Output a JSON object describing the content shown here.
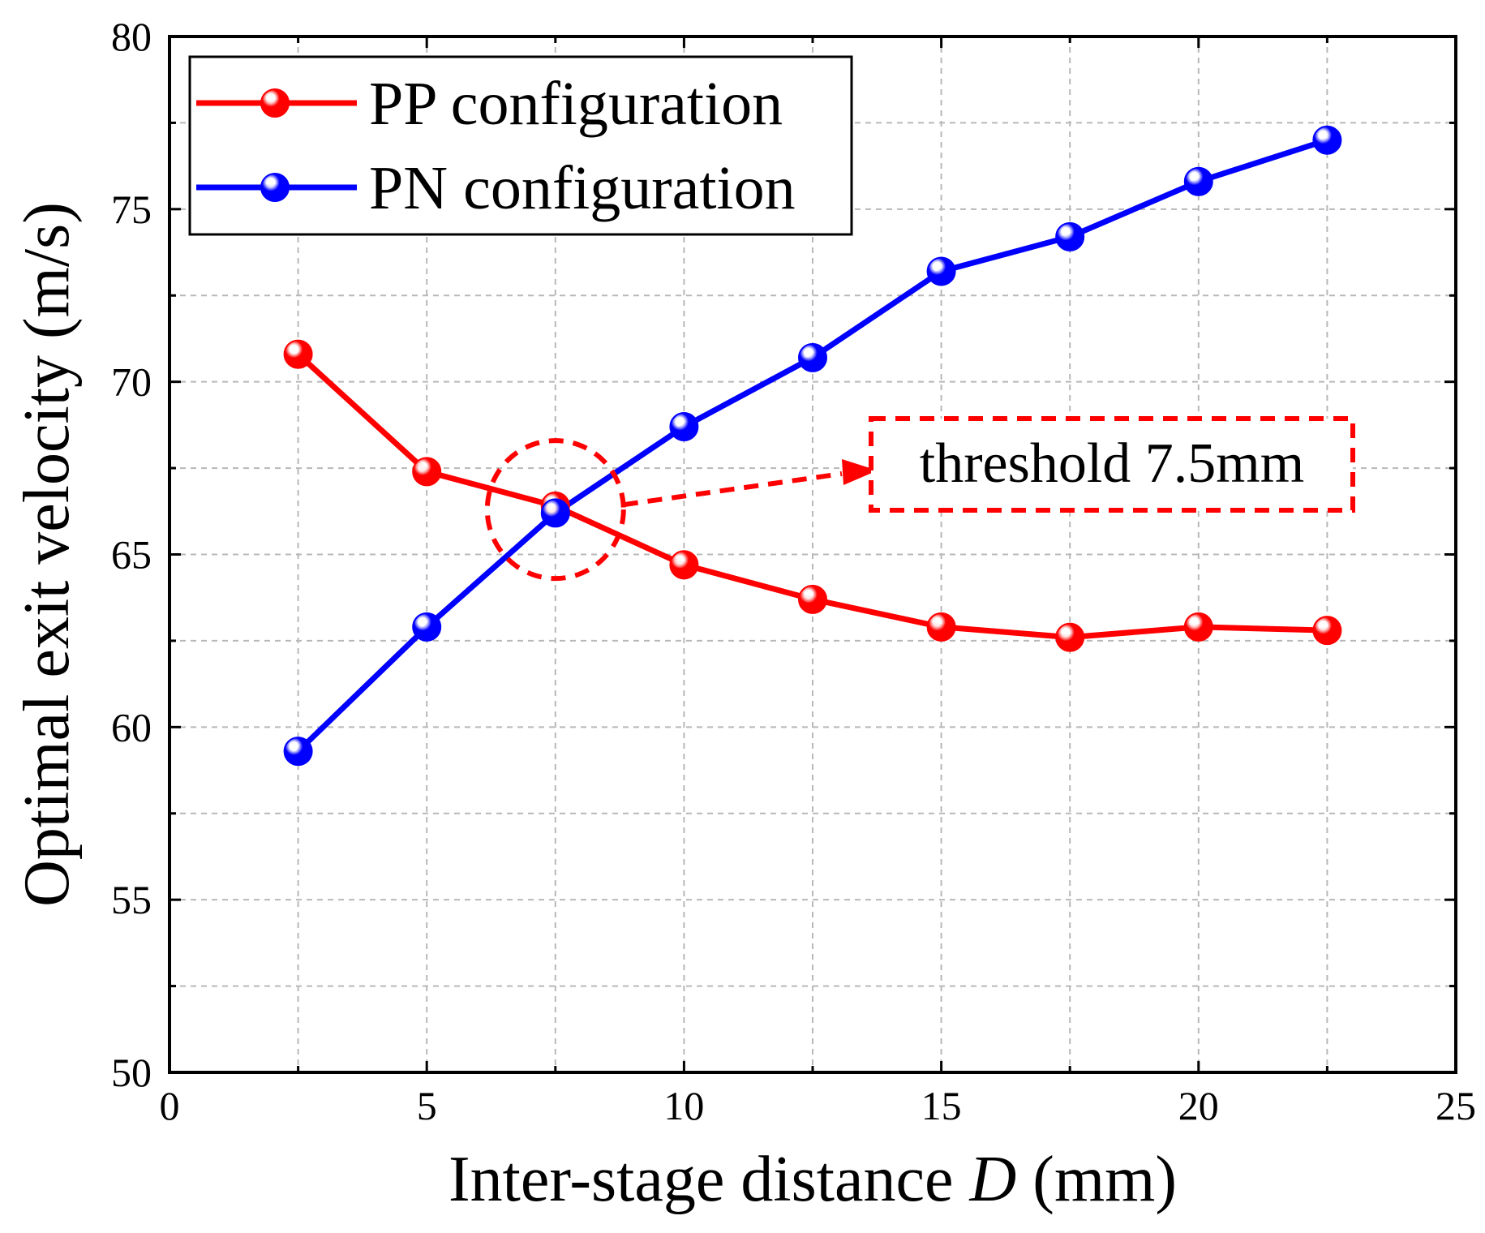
{
  "chart_data": {
    "type": "line",
    "title": "",
    "xlabel_prefix": "Inter-stage distance ",
    "xlabel_var": "D",
    "xlabel_suffix": " (mm)",
    "ylabel": "Optimal exit velocity (m/s)",
    "xlim": [
      0,
      25
    ],
    "ylim": [
      50,
      80
    ],
    "xticks": [
      0,
      5,
      10,
      15,
      20,
      25
    ],
    "yticks": [
      50,
      55,
      60,
      65,
      70,
      75,
      80
    ],
    "grid": true,
    "legend_position": "top-left",
    "x": [
      2.5,
      5,
      7.5,
      10,
      12.5,
      15,
      17.5,
      20,
      22.5
    ],
    "series": [
      {
        "name": "PP configuration",
        "color": "#ff0000",
        "values": [
          70.8,
          67.4,
          66.4,
          64.7,
          63.7,
          62.9,
          62.6,
          62.9,
          62.8
        ]
      },
      {
        "name": "PN configuration",
        "color": "#0000ff",
        "values": [
          59.3,
          62.9,
          66.2,
          68.7,
          70.7,
          73.2,
          74.2,
          75.8,
          77.0
        ]
      }
    ],
    "annotation": {
      "text": "threshold 7.5mm",
      "at_x": 7.5,
      "at_y": 66.3,
      "color": "#ff0000"
    }
  }
}
